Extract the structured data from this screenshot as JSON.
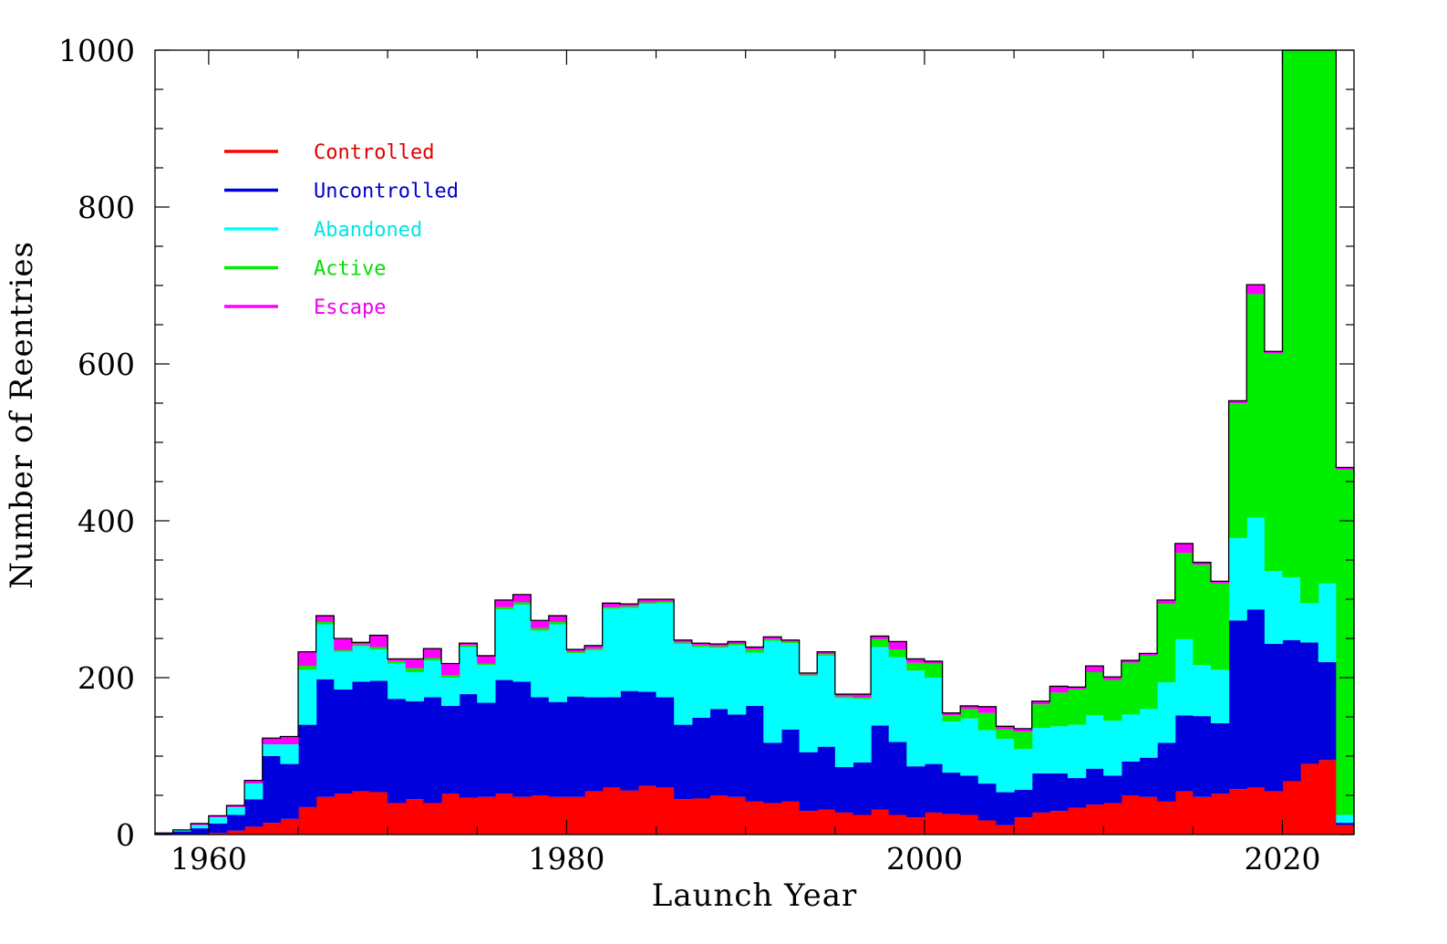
{
  "chart_data": {
    "type": "bar",
    "stacked": true,
    "histogram_step": true,
    "xlabel": "Launch Year",
    "ylabel": "Number of Reentries",
    "xlim": [
      1957,
      2024
    ],
    "ylim": [
      0,
      1000
    ],
    "xticks": [
      1960,
      1980,
      2000,
      2020
    ],
    "yticks": [
      0,
      200,
      400,
      600,
      800,
      1000
    ],
    "grid": false,
    "legend_position": "top-left",
    "x": [
      1957,
      1958,
      1959,
      1960,
      1961,
      1962,
      1963,
      1964,
      1965,
      1966,
      1967,
      1968,
      1969,
      1970,
      1971,
      1972,
      1973,
      1974,
      1975,
      1976,
      1977,
      1978,
      1979,
      1980,
      1981,
      1982,
      1983,
      1984,
      1985,
      1986,
      1987,
      1988,
      1989,
      1990,
      1991,
      1992,
      1993,
      1994,
      1995,
      1996,
      1997,
      1998,
      1999,
      2000,
      2001,
      2002,
      2003,
      2004,
      2005,
      2006,
      2007,
      2008,
      2009,
      2010,
      2011,
      2012,
      2013,
      2014,
      2015,
      2016,
      2017,
      2018,
      2019,
      2020,
      2021,
      2022,
      2023
    ],
    "series": [
      {
        "name": "Controlled",
        "color": "#ff0000",
        "values": [
          0,
          0,
          0,
          2,
          5,
          10,
          15,
          20,
          35,
          48,
          52,
          55,
          54,
          40,
          45,
          40,
          52,
          47,
          48,
          52,
          48,
          50,
          48,
          48,
          55,
          60,
          56,
          62,
          60,
          45,
          46,
          50,
          48,
          42,
          40,
          42,
          30,
          32,
          28,
          25,
          32,
          25,
          22,
          28,
          26,
          25,
          18,
          12,
          22,
          28,
          30,
          34,
          38,
          40,
          50,
          48,
          42,
          55,
          48,
          52,
          58,
          60,
          55,
          68,
          90,
          95,
          12
        ]
      },
      {
        "name": "Uncontrolled",
        "color": "#0000dd",
        "values": [
          2,
          4,
          8,
          12,
          20,
          35,
          85,
          70,
          105,
          150,
          133,
          140,
          142,
          133,
          125,
          135,
          112,
          132,
          120,
          145,
          147,
          125,
          121,
          128,
          120,
          115,
          127,
          120,
          115,
          95,
          103,
          110,
          105,
          122,
          77,
          92,
          75,
          80,
          58,
          67,
          107,
          93,
          65,
          62,
          53,
          50,
          47,
          42,
          35,
          50,
          48,
          38,
          46,
          35,
          43,
          50,
          75,
          97,
          103,
          90,
          215,
          227,
          188,
          180,
          155,
          125,
          3
        ]
      },
      {
        "name": "Abandoned",
        "color": "#00ffff",
        "values": [
          0,
          2,
          4,
          8,
          10,
          20,
          15,
          25,
          70,
          70,
          48,
          45,
          40,
          45,
          37,
          47,
          36,
          60,
          48,
          90,
          98,
          85,
          99,
          55,
          60,
          113,
          106,
          112,
          120,
          103,
          90,
          78,
          88,
          68,
          130,
          110,
          97,
          116,
          88,
          81,
          100,
          108,
          122,
          110,
          65,
          73,
          68,
          68,
          52,
          58,
          60,
          68,
          68,
          70,
          60,
          62,
          77,
          97,
          65,
          68,
          105,
          117,
          93,
          80,
          50,
          100,
          10
        ]
      },
      {
        "name": "Active",
        "color": "#00ee00",
        "values": [
          0,
          0,
          0,
          0,
          0,
          0,
          0,
          0,
          5,
          3,
          2,
          2,
          3,
          3,
          5,
          3,
          3,
          2,
          2,
          3,
          3,
          3,
          3,
          2,
          2,
          2,
          2,
          2,
          2,
          2,
          2,
          2,
          2,
          4,
          2,
          2,
          2,
          2,
          2,
          2,
          10,
          10,
          10,
          18,
          8,
          12,
          22,
          12,
          22,
          30,
          43,
          45,
          55,
          52,
          66,
          68,
          100,
          110,
          128,
          110,
          172,
          285,
          277,
          672,
          705,
          680,
          440
        ]
      },
      {
        "name": "Escape",
        "color": "#ff00ff",
        "values": [
          0,
          0,
          2,
          2,
          2,
          4,
          8,
          10,
          18,
          8,
          15,
          3,
          15,
          3,
          12,
          12,
          15,
          3,
          10,
          9,
          10,
          10,
          8,
          3,
          4,
          5,
          3,
          4,
          3,
          3,
          3,
          3,
          3,
          3,
          3,
          2,
          2,
          3,
          3,
          4,
          4,
          10,
          5,
          3,
          3,
          4,
          8,
          4,
          4,
          4,
          8,
          3,
          8,
          4,
          3,
          3,
          5,
          12,
          3,
          3,
          3,
          12,
          3,
          3,
          3,
          3,
          3
        ]
      }
    ]
  }
}
